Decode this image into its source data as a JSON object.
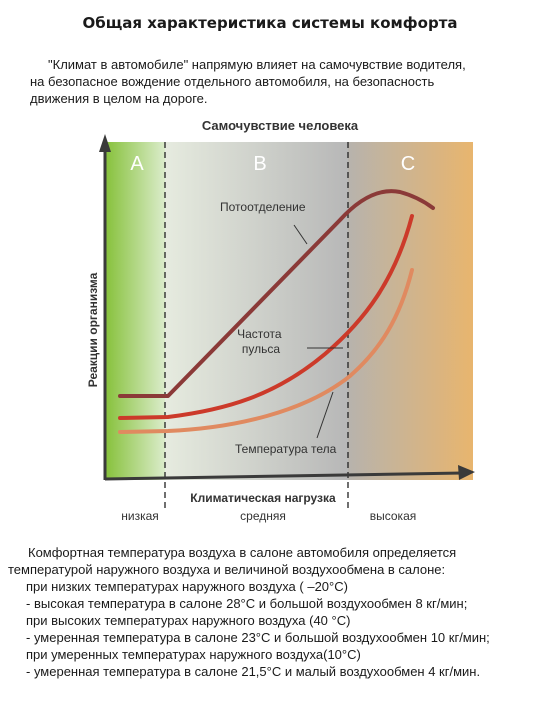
{
  "document": {
    "title": "Общая характеристика системы комфорта",
    "intro": {
      "line1": "\"Климат в автомобиле\" напрямую влияет на самочувствие водителя,",
      "line2": "на безопасное вождение отдельного автомобиля, на безопасность",
      "line3": "движения в целом на дороге."
    },
    "body_lines": [
      "Комфортная температура воздуха в салоне автомобиля определяется",
      "температурой наружного воздуха и величиной воздухообмена в салоне:",
      "при низких температурах наружного воздуха ( –20°С)",
      "- высокая температура в салоне 28°С и большой воздухообмен 8 кг/мин;",
      "при высоких температурах наружного воздуха (40 °С)",
      "- умеренная температура в салоне 23°С и большой воздухообмен 10 кг/мин;",
      "при умеренных температурах наружного воздуха(10°С)",
      "- умеренная температура в салоне 21,5°С и малый воздухообмен 4 кг/мин."
    ]
  },
  "chart_data": {
    "type": "line",
    "title": "Самочувствие человека",
    "ylabel": "Реакции организма",
    "xlabel": "Климатическая нагрузка",
    "zones": [
      {
        "name": "A",
        "x_label": "низкая",
        "color": "#8cc63f"
      },
      {
        "name": "B",
        "x_label": "средняя",
        "color": "#c8c8c8"
      },
      {
        "name": "C",
        "x_label": "высокая",
        "color": "#e6b06a"
      }
    ],
    "series": [
      {
        "name": "Потоотделение",
        "color": "#8b3a38"
      },
      {
        "name": "Частота пульса",
        "color": "#cc3a2a"
      },
      {
        "name": "Температура тела",
        "color": "#e08a60"
      }
    ],
    "colors": {
      "axis": "#3a3a3a",
      "divider": "#222222"
    }
  }
}
